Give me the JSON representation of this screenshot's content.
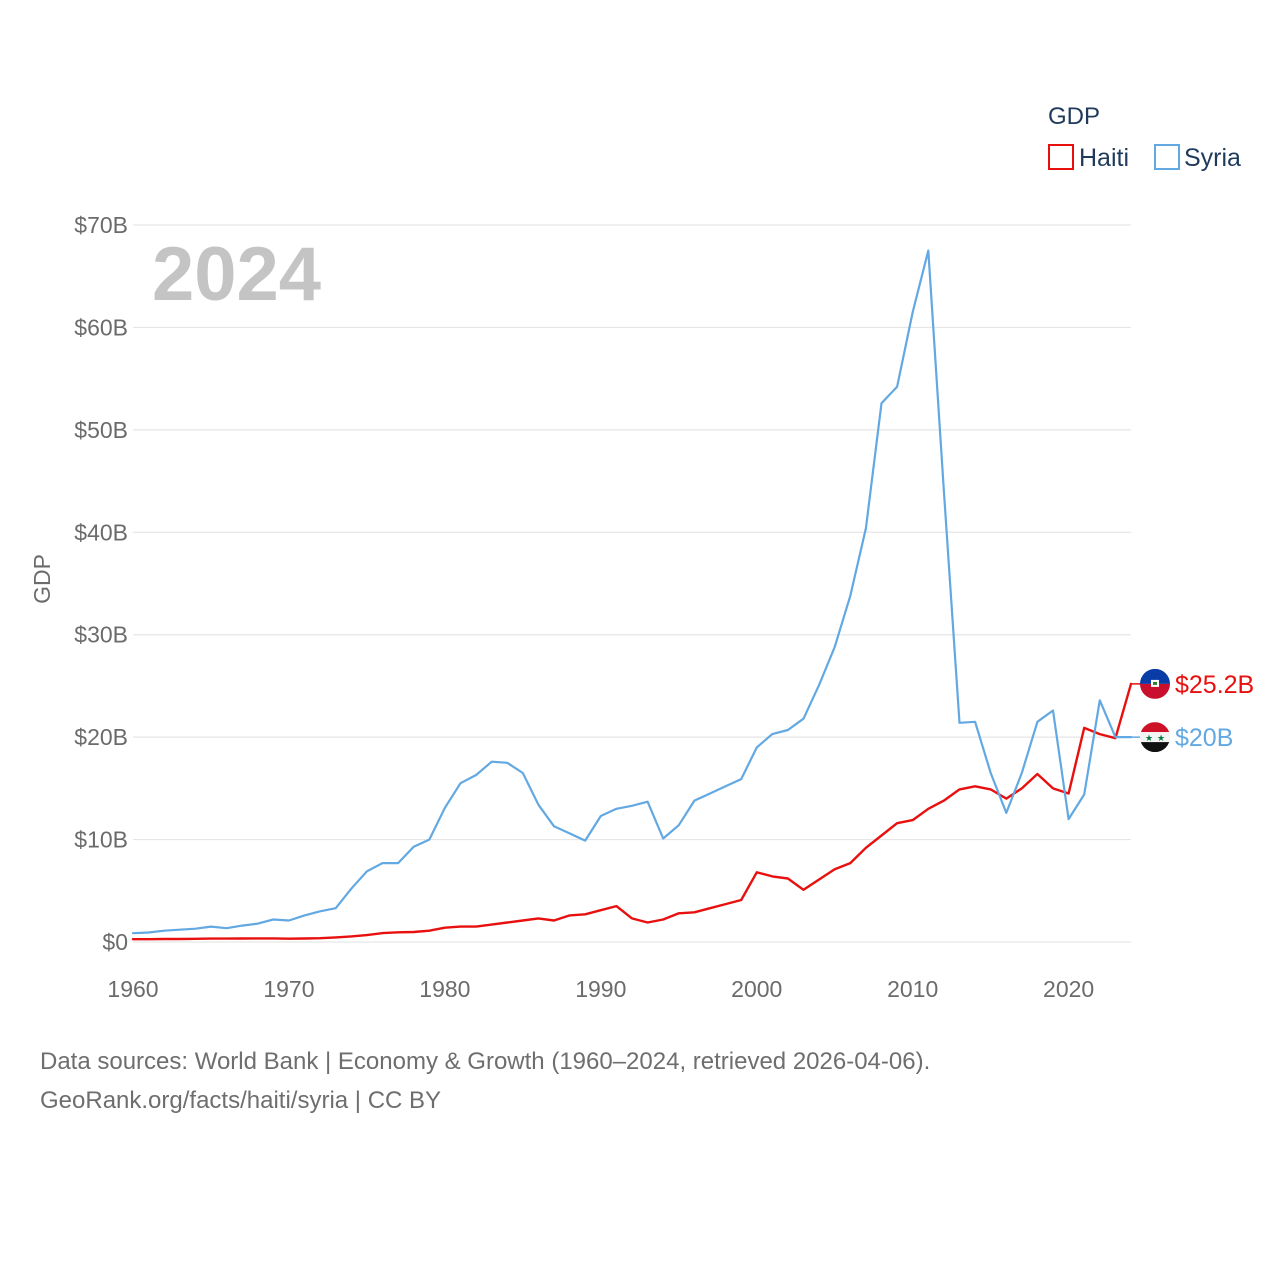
{
  "chart_data": {
    "type": "line",
    "year_label": "2024",
    "ylabel": "GDP",
    "legend_title": "GDP",
    "ylim": [
      0,
      70
    ],
    "yticks": [
      0,
      10,
      20,
      30,
      40,
      50,
      60,
      70
    ],
    "ytick_labels": [
      "$0",
      "$10B",
      "$20B",
      "$30B",
      "$40B",
      "$50B",
      "$60B",
      "$70B"
    ],
    "xlim": [
      1960,
      2024
    ],
    "xticks": [
      1960,
      1970,
      1980,
      1990,
      2000,
      2010,
      2020
    ],
    "xtick_labels": [
      "1960",
      "1970",
      "1980",
      "1990",
      "2000",
      "2010",
      "2020"
    ],
    "x": [
      1960,
      1961,
      1962,
      1963,
      1964,
      1965,
      1966,
      1967,
      1968,
      1969,
      1970,
      1971,
      1972,
      1973,
      1974,
      1975,
      1976,
      1977,
      1978,
      1979,
      1980,
      1981,
      1982,
      1983,
      1984,
      1985,
      1986,
      1987,
      1988,
      1989,
      1990,
      1991,
      1992,
      1993,
      1994,
      1995,
      1996,
      1997,
      1998,
      1999,
      2000,
      2001,
      2002,
      2003,
      2004,
      2005,
      2006,
      2007,
      2008,
      2009,
      2010,
      2011,
      2012,
      2013,
      2014,
      2015,
      2016,
      2017,
      2018,
      2019,
      2020,
      2021,
      2022,
      2023,
      2024
    ],
    "series": [
      {
        "name": "Haiti",
        "color": "#e8100e",
        "end_label": "$25.2B",
        "flag": "haiti-flag-icon",
        "values": [
          0.27,
          0.27,
          0.29,
          0.29,
          0.31,
          0.33,
          0.33,
          0.34,
          0.35,
          0.35,
          0.32,
          0.34,
          0.37,
          0.45,
          0.55,
          0.67,
          0.87,
          0.95,
          0.98,
          1.1,
          1.4,
          1.5,
          1.5,
          1.7,
          1.9,
          2.1,
          2.3,
          2.1,
          2.6,
          2.7,
          3.1,
          3.5,
          2.3,
          1.9,
          2.2,
          2.8,
          2.9,
          3.3,
          3.7,
          4.1,
          6.8,
          6.4,
          6.2,
          5.1,
          6.1,
          7.1,
          7.7,
          9.2,
          10.4,
          11.6,
          11.9,
          13.0,
          13.8,
          14.9,
          15.2,
          14.9,
          14.0,
          15.0,
          16.4,
          15.0,
          14.5,
          20.9,
          20.3,
          19.9,
          25.2
        ]
      },
      {
        "name": "Syria",
        "color": "#62a8e2",
        "end_label": "$20B",
        "flag": "syria-flag-icon",
        "values": [
          0.86,
          0.93,
          1.1,
          1.2,
          1.3,
          1.5,
          1.35,
          1.6,
          1.8,
          2.2,
          2.1,
          2.6,
          3.0,
          3.3,
          5.2,
          6.9,
          7.7,
          7.7,
          9.3,
          10.0,
          13.1,
          15.5,
          16.3,
          17.6,
          17.5,
          16.5,
          13.4,
          11.3,
          10.6,
          9.9,
          12.3,
          13.0,
          13.3,
          13.7,
          10.1,
          11.4,
          13.8,
          14.5,
          15.2,
          15.9,
          19.0,
          20.3,
          20.7,
          21.8,
          25.1,
          28.8,
          33.8,
          40.4,
          52.6,
          54.2,
          61.5,
          67.5,
          44.0,
          21.4,
          21.5,
          16.5,
          12.6,
          16.5,
          21.5,
          22.6,
          12.0,
          14.4,
          23.6,
          20.0,
          20.0
        ]
      }
    ]
  },
  "source": {
    "line1": "Data sources: World Bank | Economy & Growth (1960–2024, retrieved 2026-04-06).",
    "line2": "GeoRank.org/facts/haiti/syria | CC BY"
  }
}
